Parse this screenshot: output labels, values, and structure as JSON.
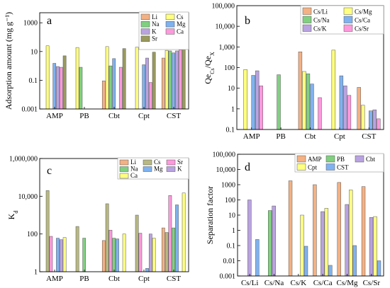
{
  "chart_data": [
    {
      "panel": "a",
      "type": "bar",
      "ylabel": "Adsorption amount (mg g⁻¹)",
      "yscale": "log",
      "ylim": [
        0.001,
        5000
      ],
      "yticks": [
        "0.001",
        "0.1",
        "10",
        "1000"
      ],
      "ytick_values": [
        0.001,
        0.1,
        10,
        1000
      ],
      "categories": [
        "AMP",
        "PB",
        "Cbt",
        "Cpt",
        "CST"
      ],
      "legend_columns": 2,
      "series": [
        {
          "name": "Li",
          "color": "#f4b183",
          "values": [
            null,
            null,
            0.09,
            null,
            3.5
          ]
        },
        {
          "name": "Cs",
          "color": "#ffff80",
          "values": [
            25,
            19,
            22,
            20,
            12
          ]
        },
        {
          "name": "Na",
          "color": "#80d080",
          "values": [
            null,
            0.8,
            1.0,
            null,
            11
          ]
        },
        {
          "name": "Mg",
          "color": "#7fb2f0",
          "values": [
            1.5,
            null,
            3.2,
            1.2,
            8
          ]
        },
        {
          "name": "K",
          "color": "#b9a3e0",
          "values": [
            0.9,
            null,
            null,
            3.5,
            11
          ]
        },
        {
          "name": "Ca",
          "color": "#ff99dd",
          "values": [
            0.8,
            null,
            0.8,
            0.07,
            13
          ]
        },
        {
          "name": "Sr",
          "color": "#9a9a5e",
          "values": [
            5,
            null,
            16,
            9,
            22
          ]
        }
      ]
    },
    {
      "panel": "b",
      "type": "bar",
      "ylabel": "Qe_Cs/Qe_X",
      "yscale": "log",
      "ylim": [
        0.1,
        100000
      ],
      "yticks": [
        "0.1",
        "1",
        "10",
        "100",
        "1,000",
        "10,000",
        "100,000"
      ],
      "ytick_values": [
        0.1,
        1,
        10,
        100,
        1000,
        10000,
        100000
      ],
      "categories": [
        "AMP",
        "PB",
        "Cbt",
        "Cpt",
        "CST"
      ],
      "legend_columns": 2,
      "series": [
        {
          "name": "Cs/Li",
          "color": "#f4b183",
          "values": [
            null,
            null,
            580,
            null,
            11
          ]
        },
        {
          "name": "Cs/Mg",
          "color": "#ffff80",
          "values": [
            80,
            null,
            65,
            700,
            1.5
          ]
        },
        {
          "name": "Cs/Na",
          "color": "#80d080",
          "values": [
            null,
            45,
            50,
            null,
            null
          ]
        },
        {
          "name": "Cs/Ca",
          "color": "#7fb2f0",
          "values": [
            42,
            null,
            16,
            40,
            0.8
          ]
        },
        {
          "name": "Cs/K",
          "color": "#b9a3e0",
          "values": [
            70,
            null,
            null,
            13,
            0.9
          ]
        },
        {
          "name": "Cs/Sr",
          "color": "#ff99dd",
          "values": [
            13,
            null,
            3.5,
            4.5,
            0.33
          ]
        }
      ]
    },
    {
      "panel": "c",
      "type": "bar",
      "ylabel": "K_d",
      "yscale": "log",
      "ylim": [
        1,
        1000000
      ],
      "yticks": [
        "1",
        "100",
        "10,000",
        "1,000,000"
      ],
      "ytick_values": [
        1,
        100,
        10000,
        1000000
      ],
      "categories": [
        "AMP",
        "PB",
        "Cbt",
        "Cpt",
        "CST"
      ],
      "legend_columns": 3,
      "series": [
        {
          "name": "Li",
          "color": "#f4b183",
          "values": [
            null,
            null,
            45,
            null,
            210
          ]
        },
        {
          "name": "Cs",
          "color": "#b8b882",
          "values": [
            20000,
            250,
            4000,
            1000,
            120
          ]
        },
        {
          "name": "Sr",
          "color": "#ff99dd",
          "values": [
            75,
            null,
            160,
            110,
            11000
          ]
        },
        {
          "name": "Na",
          "color": "#80d080",
          "values": [
            null,
            60,
            60,
            null,
            210
          ]
        },
        {
          "name": "Mg",
          "color": "#7fb2f0",
          "values": [
            60,
            null,
            55,
            1.5,
            3500
          ]
        },
        {
          "name": "K",
          "color": "#b9a3e0",
          "values": [
            50,
            null,
            null,
            100,
            null
          ]
        },
        {
          "name": "Ca",
          "color": "#ffff80",
          "values": [
            65,
            null,
            100,
            60,
            15000
          ]
        }
      ]
    },
    {
      "panel": "d",
      "type": "bar",
      "ylabel": "Separation factor",
      "yscale": "log",
      "ylim": [
        0.001,
        100000
      ],
      "yticks": [
        "0.001",
        "0.01",
        "0.1",
        "1",
        "10",
        "100",
        "1000",
        "10,000",
        "100,000"
      ],
      "ytick_values": [
        0.001,
        0.01,
        0.1,
        1,
        10,
        100,
        1000,
        10000,
        100000
      ],
      "categories": [
        "Cs/Li",
        "Cs/Na",
        "Cs/K",
        "Cs/Ca",
        "Cs/Mg",
        "Cs/Sr"
      ],
      "legend_columns": 3,
      "series": [
        {
          "name": "AMP",
          "color": "#f4b183",
          "values": [
            null,
            null,
            1800,
            1000,
            1400,
            750
          ]
        },
        {
          "name": "PB",
          "color": "#80d080",
          "values": [
            null,
            20,
            null,
            null,
            null,
            null
          ]
        },
        {
          "name": "Cbt",
          "color": "#b9a3e0",
          "values": [
            100,
            40,
            null,
            17,
            50,
            7
          ]
        },
        {
          "name": "Cpt",
          "color": "#ffff80",
          "values": [
            null,
            null,
            10,
            28,
            450,
            8
          ]
        },
        {
          "name": "CST",
          "color": "#7fb2f0",
          "values": [
            0.25,
            null,
            0.09,
            0.005,
            0.1,
            0.01
          ]
        }
      ]
    }
  ]
}
